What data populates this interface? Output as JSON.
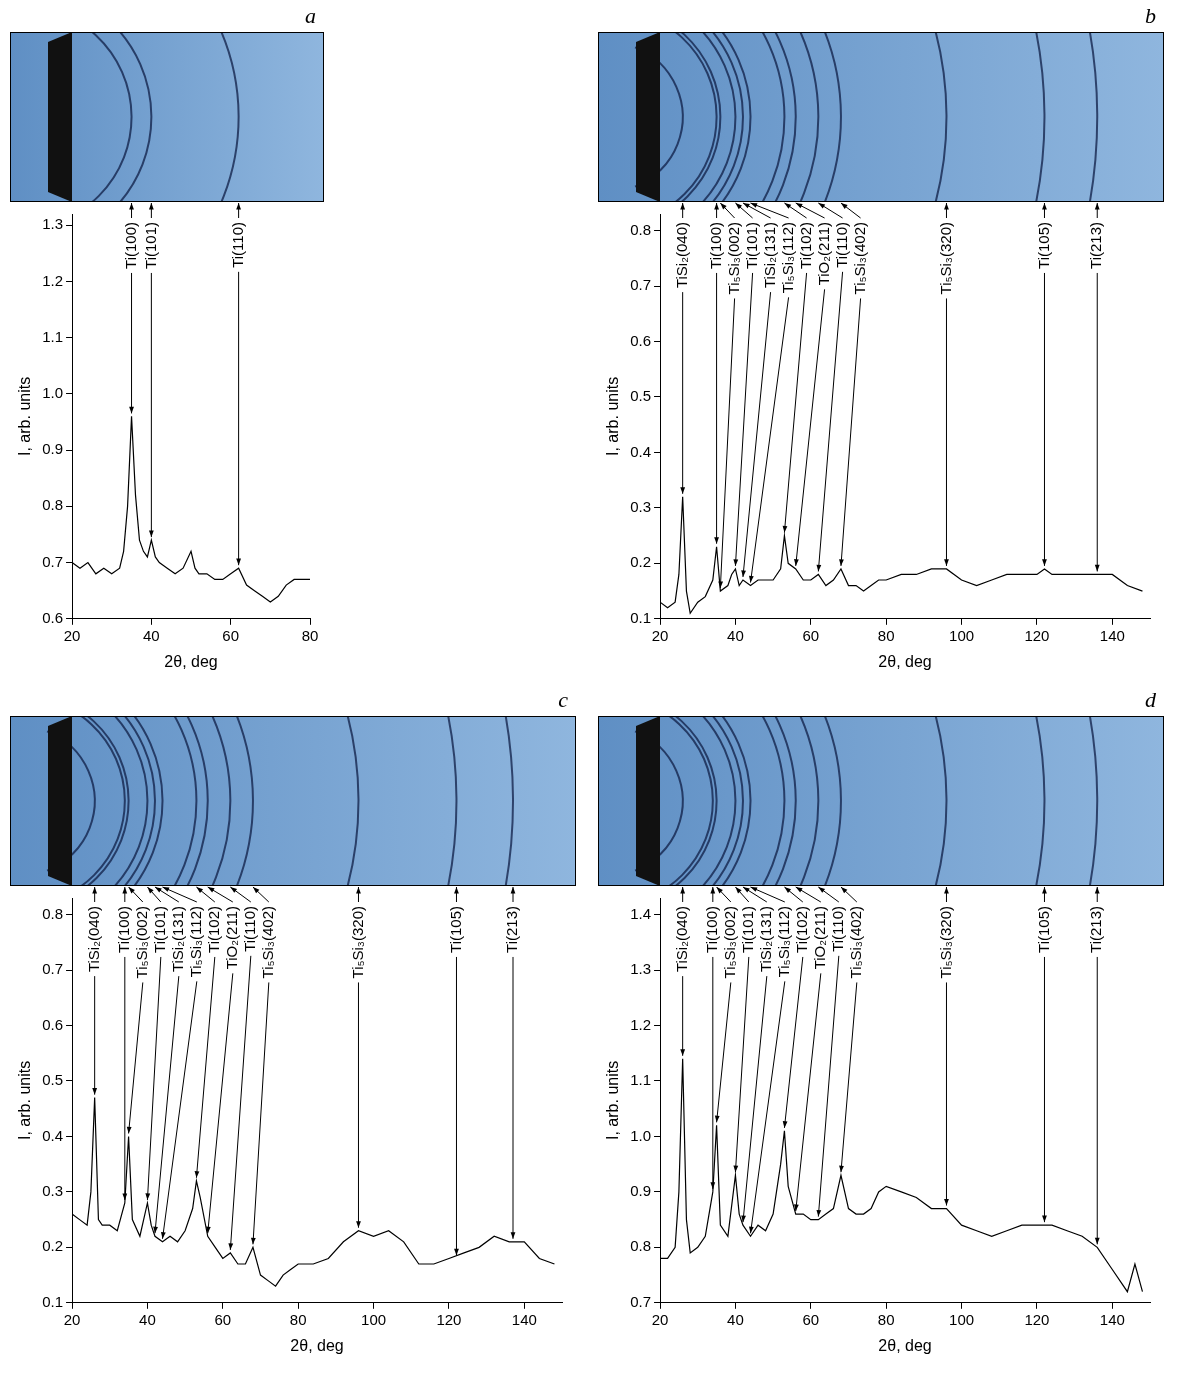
{
  "chart_data": [
    {
      "type": "line",
      "title": "a",
      "x_label": "2θ, deg",
      "y_label": "I, arb. units",
      "color": "#000000",
      "grid": false,
      "xlim": [
        20,
        80
      ],
      "xticks": [
        20,
        40,
        60,
        80
      ],
      "ylim": [
        0.6,
        1.32
      ],
      "yticks": [
        0.6,
        0.7,
        0.8,
        0.9,
        {
          "value": 1,
          "label": "1.0"
        },
        1.1,
        1.2,
        1.3
      ],
      "x": [
        20,
        22,
        24,
        26,
        28,
        30,
        32,
        33,
        34,
        35,
        36,
        37,
        38,
        39,
        40,
        41,
        42,
        44,
        46,
        48,
        50,
        51,
        52,
        54,
        56,
        58,
        60,
        62,
        64,
        66,
        68,
        70,
        72,
        74,
        76,
        78,
        80
      ],
      "values": [
        0.7,
        0.69,
        0.7,
        0.68,
        0.69,
        0.68,
        0.69,
        0.72,
        0.8,
        0.96,
        0.82,
        0.74,
        0.72,
        0.71,
        0.74,
        0.71,
        0.7,
        0.69,
        0.68,
        0.69,
        0.72,
        0.69,
        0.68,
        0.68,
        0.67,
        0.67,
        0.68,
        0.69,
        0.66,
        0.65,
        0.64,
        0.63,
        0.64,
        0.66,
        0.67,
        0.67,
        0.67
      ],
      "annotations": [
        {
          "text": "Ti(100)",
          "x": 35,
          "y": 0.96
        },
        {
          "text": "Ti(101)",
          "x": 40,
          "y": 0.74
        },
        {
          "text": "Ti(110)",
          "x": 62,
          "y": 0.69
        }
      ]
    },
    {
      "type": "line",
      "title": "b",
      "x_label": "2θ, deg",
      "y_label": "I, arb. units",
      "color": "#000000",
      "grid": false,
      "xlim": [
        20,
        150
      ],
      "xticks": [
        20,
        40,
        60,
        80,
        100,
        120,
        140
      ],
      "ylim": [
        0.1,
        0.83
      ],
      "yticks": [
        0.1,
        0.2,
        0.3,
        0.4,
        0.5,
        0.6,
        0.7,
        0.8
      ],
      "x": [
        20,
        22,
        24,
        25,
        26,
        27,
        28,
        30,
        32,
        34,
        35,
        36,
        38,
        39,
        40,
        41,
        42,
        44,
        46,
        48,
        50,
        52,
        53,
        54,
        56,
        58,
        60,
        62,
        64,
        66,
        68,
        70,
        72,
        74,
        76,
        78,
        80,
        84,
        88,
        92,
        96,
        100,
        104,
        108,
        112,
        116,
        120,
        122,
        124,
        128,
        132,
        136,
        140,
        144,
        148
      ],
      "values": [
        0.13,
        0.12,
        0.13,
        0.18,
        0.32,
        0.15,
        0.11,
        0.13,
        0.14,
        0.17,
        0.23,
        0.15,
        0.16,
        0.18,
        0.19,
        0.16,
        0.17,
        0.16,
        0.17,
        0.17,
        0.17,
        0.19,
        0.25,
        0.2,
        0.19,
        0.17,
        0.17,
        0.18,
        0.16,
        0.17,
        0.19,
        0.16,
        0.16,
        0.15,
        0.16,
        0.17,
        0.17,
        0.18,
        0.18,
        0.19,
        0.19,
        0.17,
        0.16,
        0.17,
        0.18,
        0.18,
        0.18,
        0.19,
        0.18,
        0.18,
        0.18,
        0.18,
        0.18,
        0.16,
        0.15
      ],
      "annotations": [
        {
          "text": "TiSi₂(040)",
          "x": 26,
          "y": 0.32
        },
        {
          "text": "Ti(100)",
          "x": 35,
          "y": 0.23
        },
        {
          "text": "Ti₅Si₃(002)",
          "x": 36,
          "y": 0.15
        },
        {
          "text": "Ti(101)",
          "x": 40,
          "y": 0.19
        },
        {
          "text": "TiSi₂(131)",
          "x": 42,
          "y": 0.17
        },
        {
          "text": "Ti₅Si₃(112)",
          "x": 44,
          "y": 0.16
        },
        {
          "text": "Ti(102)",
          "x": 53,
          "y": 0.25
        },
        {
          "text": "TiO₂(211)",
          "x": 56,
          "y": 0.19
        },
        {
          "text": "Ti(110)",
          "x": 62,
          "y": 0.18
        },
        {
          "text": "Ti₅Si₃(402)",
          "x": 68,
          "y": 0.19
        },
        {
          "text": "Ti₅Si₃(320)",
          "x": 96,
          "y": 0.19
        },
        {
          "text": "Ti(105)",
          "x": 122,
          "y": 0.19
        },
        {
          "text": "Ti(213)",
          "x": 136,
          "y": 0.18
        }
      ]
    },
    {
      "type": "line",
      "title": "c",
      "x_label": "2θ, deg",
      "y_label": "I, arb. units",
      "color": "#000000",
      "grid": false,
      "xlim": [
        20,
        150
      ],
      "xticks": [
        20,
        40,
        60,
        80,
        100,
        120,
        140
      ],
      "ylim": [
        0.1,
        0.83
      ],
      "yticks": [
        0.1,
        0.2,
        0.3,
        0.4,
        0.5,
        0.6,
        0.7,
        0.8
      ],
      "x": [
        20,
        22,
        24,
        25,
        26,
        27,
        28,
        30,
        32,
        34,
        35,
        36,
        38,
        40,
        41,
        42,
        44,
        46,
        48,
        50,
        52,
        53,
        54,
        56,
        58,
        60,
        62,
        64,
        66,
        68,
        70,
        72,
        74,
        76,
        78,
        80,
        84,
        88,
        92,
        96,
        100,
        104,
        108,
        112,
        116,
        120,
        124,
        128,
        132,
        136,
        140,
        144,
        148
      ],
      "values": [
        0.26,
        0.25,
        0.24,
        0.3,
        0.47,
        0.25,
        0.24,
        0.24,
        0.23,
        0.28,
        0.4,
        0.25,
        0.22,
        0.28,
        0.24,
        0.22,
        0.21,
        0.22,
        0.21,
        0.23,
        0.27,
        0.32,
        0.29,
        0.22,
        0.2,
        0.18,
        0.19,
        0.17,
        0.17,
        0.2,
        0.15,
        0.14,
        0.13,
        0.15,
        0.16,
        0.17,
        0.17,
        0.18,
        0.21,
        0.23,
        0.22,
        0.23,
        0.21,
        0.17,
        0.17,
        0.18,
        0.19,
        0.2,
        0.22,
        0.21,
        0.21,
        0.18,
        0.17
      ],
      "annotations": [
        {
          "text": "TiSi₂(040)",
          "x": 26,
          "y": 0.47
        },
        {
          "text": "Ti(100)",
          "x": 34,
          "y": 0.28
        },
        {
          "text": "Ti₅Si₃(002)",
          "x": 35,
          "y": 0.4
        },
        {
          "text": "Ti(101)",
          "x": 40,
          "y": 0.28
        },
        {
          "text": "TiSi₂(131)",
          "x": 42,
          "y": 0.22
        },
        {
          "text": "Ti₅Si₃(112)",
          "x": 44,
          "y": 0.21
        },
        {
          "text": "Ti(102)",
          "x": 53,
          "y": 0.32
        },
        {
          "text": "TiO₂(211)",
          "x": 56,
          "y": 0.22
        },
        {
          "text": "Ti(110)",
          "x": 62,
          "y": 0.19
        },
        {
          "text": "Ti₅Si₃(402)",
          "x": 68,
          "y": 0.2
        },
        {
          "text": "Ti₅Si₃(320)",
          "x": 96,
          "y": 0.23
        },
        {
          "text": "Ti(105)",
          "x": 122,
          "y": 0.18
        },
        {
          "text": "Ti(213)",
          "x": 137,
          "y": 0.21
        }
      ]
    },
    {
      "type": "line",
      "title": "d",
      "x_label": "2θ, deg",
      "y_label": "I, arb. units",
      "color": "#000000",
      "grid": false,
      "xlim": [
        20,
        150
      ],
      "xticks": [
        20,
        40,
        60,
        80,
        100,
        120,
        140
      ],
      "ylim": [
        0.7,
        1.43
      ],
      "yticks": [
        0.7,
        0.8,
        0.9,
        {
          "value": 1,
          "label": "1.0"
        },
        1.1,
        1.2,
        1.3,
        1.4
      ],
      "x": [
        20,
        22,
        24,
        25,
        26,
        27,
        28,
        30,
        32,
        34,
        35,
        36,
        38,
        40,
        41,
        42,
        44,
        46,
        48,
        50,
        52,
        53,
        54,
        56,
        58,
        60,
        62,
        64,
        66,
        68,
        70,
        72,
        74,
        76,
        78,
        80,
        84,
        88,
        92,
        96,
        100,
        104,
        108,
        112,
        116,
        120,
        124,
        128,
        132,
        136,
        140,
        144,
        146,
        148
      ],
      "values": [
        0.78,
        0.78,
        0.8,
        0.9,
        1.14,
        0.85,
        0.79,
        0.8,
        0.82,
        0.9,
        1.02,
        0.84,
        0.82,
        0.93,
        0.86,
        0.84,
        0.82,
        0.84,
        0.83,
        0.86,
        0.95,
        1.01,
        0.91,
        0.86,
        0.86,
        0.85,
        0.85,
        0.86,
        0.87,
        0.93,
        0.87,
        0.86,
        0.86,
        0.87,
        0.9,
        0.91,
        0.9,
        0.89,
        0.87,
        0.87,
        0.84,
        0.83,
        0.82,
        0.83,
        0.84,
        0.84,
        0.84,
        0.83,
        0.82,
        0.8,
        0.76,
        0.72,
        0.77,
        0.72
      ],
      "annotations": [
        {
          "text": "TiSi₂(040)",
          "x": 26,
          "y": 1.14
        },
        {
          "text": "Ti(100)",
          "x": 34,
          "y": 0.9
        },
        {
          "text": "Ti₅Si₃(002)",
          "x": 35,
          "y": 1.02
        },
        {
          "text": "Ti(101)",
          "x": 40,
          "y": 0.93
        },
        {
          "text": "TiSi₂(131)",
          "x": 42,
          "y": 0.84
        },
        {
          "text": "Ti₅Si₃(112)",
          "x": 44,
          "y": 0.82
        },
        {
          "text": "Ti(102)",
          "x": 53,
          "y": 1.01
        },
        {
          "text": "TiO₂(211)",
          "x": 56,
          "y": 0.86
        },
        {
          "text": "Ti(110)",
          "x": 62,
          "y": 0.85
        },
        {
          "text": "Ti₅Si₃(402)",
          "x": 68,
          "y": 0.93
        },
        {
          "text": "Ti₅Si₃(320)",
          "x": 96,
          "y": 0.87
        },
        {
          "text": "Ti(105)",
          "x": 122,
          "y": 0.84
        },
        {
          "text": "Ti(213)",
          "x": 136,
          "y": 0.8
        }
      ]
    }
  ]
}
